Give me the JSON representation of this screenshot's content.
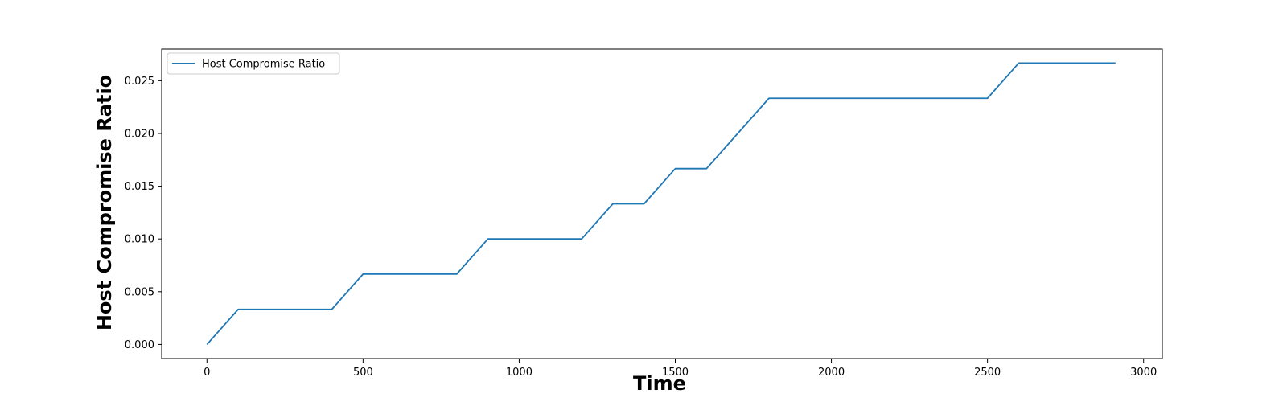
{
  "chart_data": {
    "type": "line",
    "xlabel": "Time",
    "ylabel": "Host Compromise Ratio",
    "xlim": [
      -145,
      3060
    ],
    "ylim": [
      -0.00134,
      0.028
    ],
    "x_ticks": [
      0,
      500,
      1000,
      1500,
      2000,
      2500,
      3000
    ],
    "y_ticks": [
      0.0,
      0.005,
      0.01,
      0.015,
      0.02,
      0.025
    ],
    "y_tick_decimals": 3,
    "grid": false,
    "legend": {
      "position": "upper-left",
      "entries": [
        "Host Compromise Ratio"
      ]
    },
    "series": [
      {
        "name": "Host Compromise Ratio",
        "color": "#1f77b4",
        "x": [
          0,
          100,
          400,
          500,
          800,
          900,
          1200,
          1300,
          1400,
          1500,
          1600,
          1700,
          1800,
          2500,
          2600,
          2910
        ],
        "y": [
          0.0,
          0.00333,
          0.00333,
          0.00667,
          0.00667,
          0.01,
          0.01,
          0.01333,
          0.01333,
          0.01667,
          0.01667,
          0.02,
          0.02333,
          0.02333,
          0.02667,
          0.02667
        ]
      }
    ]
  }
}
